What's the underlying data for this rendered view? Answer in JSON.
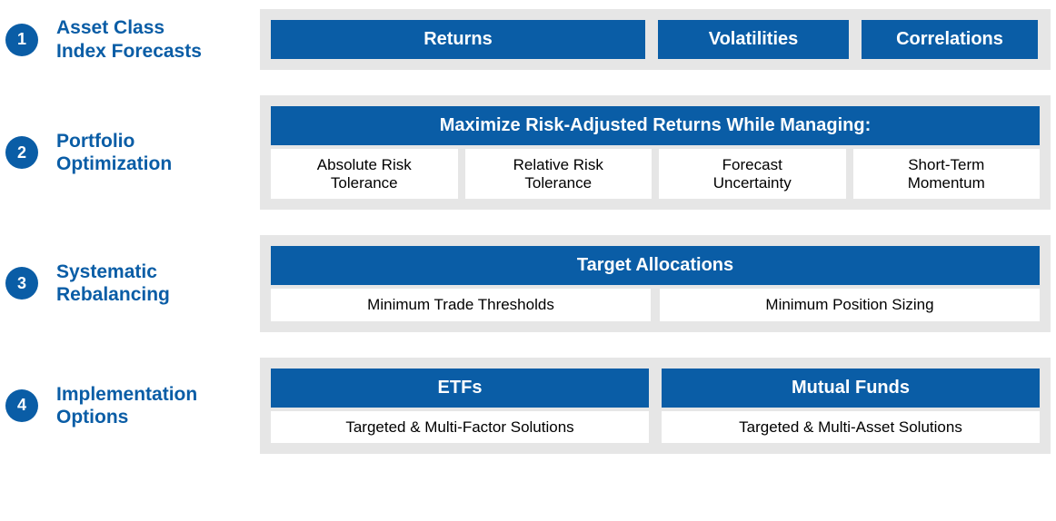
{
  "colors": {
    "primary_blue": "#0a5da6",
    "panel_bg": "#e6e6e6",
    "white": "#ffffff",
    "black": "#000000"
  },
  "rows": [
    {
      "num": "1",
      "label": "Asset Class\nIndex Forecasts",
      "headers": [
        "Returns",
        "Volatilities",
        "Correlations"
      ]
    },
    {
      "num": "2",
      "label": "Portfolio\nOptimization",
      "header": "Maximize Risk-Adjusted Returns While Managing:",
      "subs": [
        "Absolute Risk\nTolerance",
        "Relative Risk\nTolerance",
        "Forecast\nUncertainty",
        "Short-Term\nMomentum"
      ]
    },
    {
      "num": "3",
      "label": "Systematic\nRebalancing",
      "header": "Target Allocations",
      "subs": [
        "Minimum Trade Thresholds",
        "Minimum Position Sizing"
      ]
    },
    {
      "num": "4",
      "label": "Implementation\nOptions",
      "cols": [
        {
          "header": "ETFs",
          "sub": "Targeted & Multi-Factor Solutions"
        },
        {
          "header": "Mutual Funds",
          "sub": "Targeted & Multi-Asset Solutions"
        }
      ]
    }
  ]
}
